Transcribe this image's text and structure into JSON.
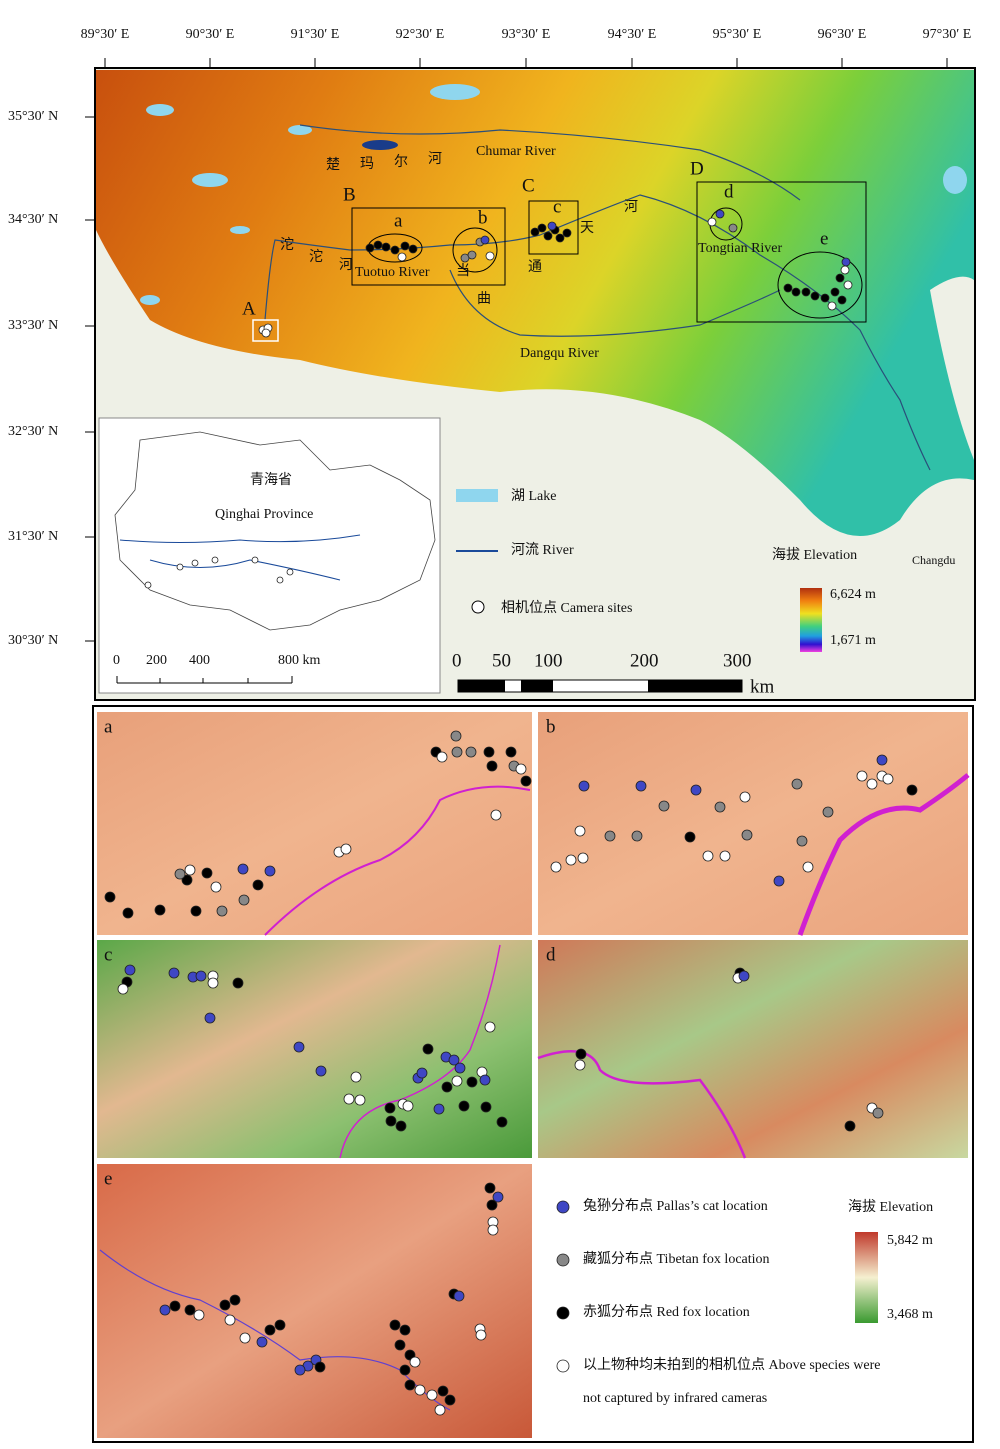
{
  "axes": {
    "longitude_labels": [
      "89°30′ E",
      "90°30′ E",
      "91°30′ E",
      "92°30′ E",
      "93°30′ E",
      "94°30′ E",
      "95°30′ E",
      "96°30′ E",
      "97°30′ E"
    ],
    "latitude_labels": [
      "35°30′ N",
      "34°30′ N",
      "33°30′ N",
      "32°30′ N",
      "31°30′ N",
      "30°30′ N"
    ]
  },
  "main_map": {
    "region_labels": [
      "A",
      "B",
      "C",
      "D"
    ],
    "box_labels": [
      "a",
      "b",
      "c",
      "d",
      "e"
    ],
    "river_labels": [
      "Chumar River",
      "Tuotuo River",
      "Tongtian River",
      "Dangqu River"
    ],
    "chinese_labels": [
      "楚",
      "玛",
      "尔",
      "河",
      "沱",
      "沱",
      "河",
      "当",
      "曲",
      "天",
      "通",
      "河"
    ],
    "place_label": "Changdu"
  },
  "legend": {
    "lake": "湖  Lake",
    "river": "河流  River",
    "camera_sites": "相机位点  Camera sites",
    "elevation_title": "海拔  Elevation",
    "elevation_max": "6,624 m",
    "elevation_min": "1,671 m"
  },
  "scale_bar": {
    "ticks": [
      "0",
      "50",
      "100",
      "200",
      "300"
    ],
    "unit": "km"
  },
  "inset": {
    "province_cn": "青海省",
    "province_en": "Qinghai Province",
    "scale_ticks": [
      "0",
      "200",
      "400",
      "800 km"
    ]
  },
  "panels": {
    "labels": [
      "a",
      "b",
      "c",
      "d",
      "e"
    ]
  },
  "species_legend": {
    "pallas_cat": "兔狲分布点  Pallas’s cat location",
    "tibetan_fox": "藏狐分布点  Tibetan fox location",
    "red_fox": "赤狐分布点  Red fox location",
    "not_captured_line1": "以上物种均未拍到的相机位点  Above species were",
    "not_captured_line2": "not captured by infrared cameras",
    "elevation_title": "海拔 Elevation",
    "elevation_max": "5,842 m",
    "elevation_min": "3,468 m"
  }
}
